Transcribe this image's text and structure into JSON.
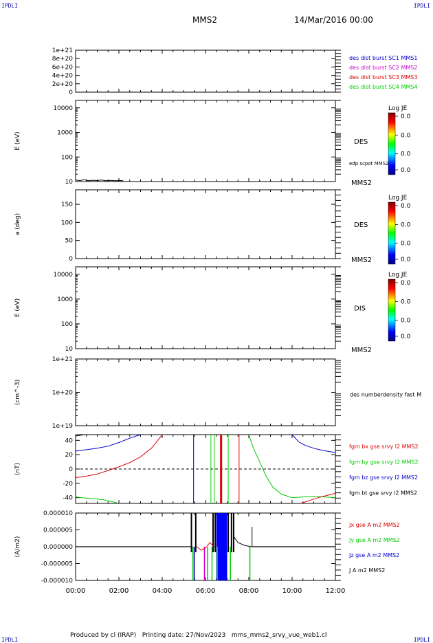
{
  "corners": {
    "top_left": "IPDLI",
    "top_right": "IPDLI",
    "bottom_left": "IPDLI",
    "bottom_right": "IPDLI"
  },
  "header": {
    "spacecraft": "MMS2",
    "date": "14/Mar/2016 00:00"
  },
  "footer": "Produced by cl (IRAP)   Printing date: 27/Nov/2023   mms_mms2_srvy_vue_web1.cl",
  "colors": {
    "axis": "#000000",
    "blue": "#0000cc",
    "magenta": "#cc00cc",
    "red": "#dd0000",
    "green": "#00cc00",
    "black": "#000000"
  },
  "time_axis": {
    "start_hours": 0,
    "end_hours": 12,
    "ticks": [
      "00:00",
      "02:00",
      "04:00",
      "06:00",
      "08:00",
      "10:00",
      "12:00"
    ]
  },
  "colorbars": [
    {
      "title": "Log JE",
      "labels": [
        "0.0",
        "0.0",
        "0.0",
        "0.0"
      ]
    },
    {
      "title": "Log JE",
      "labels": [
        "0.0",
        "0.0",
        "0.0",
        "0.0"
      ]
    },
    {
      "title": "Log JE",
      "labels": [
        "0.0",
        "0.0",
        "0.0",
        "0.0"
      ]
    }
  ],
  "chart_data": [
    {
      "type": "line",
      "ylim": [
        0,
        1e+21
      ],
      "yticks": [
        "0",
        "2e+20",
        "4e+20",
        "6e+20",
        "8e+20",
        "1e+21"
      ],
      "reference_line": 0,
      "legend": [
        {
          "label": "des dist burst SC1 MMS1",
          "color": "#0000cc"
        },
        {
          "label": "des dist burst SC2 MMS2",
          "color": "#cc00cc"
        },
        {
          "label": "des dist burst SC3 MMS3",
          "color": "#dd0000"
        },
        {
          "label": "des dist burst SC4 MMS4",
          "color": "#00cc00"
        }
      ]
    },
    {
      "type": "heatmap",
      "ylabel": "E (eV)",
      "yscale": "log",
      "ylim": [
        10,
        20000
      ],
      "yticks": [
        "10",
        "100",
        "1000",
        "10000"
      ],
      "label": "DES",
      "secondary_label": "edp scpot MMS2",
      "spacecraft": "MMS2",
      "series": [
        {
          "name": "edp scpot MMS2",
          "color": "#000000",
          "x": [
            0,
            0.2,
            0.4,
            0.6,
            0.8,
            1.0,
            1.2,
            1.4,
            1.6,
            1.8,
            2.0,
            2.2
          ],
          "y": [
            11.5,
            11.0,
            11.8,
            10.9,
            11.3,
            11.0,
            11.6,
            10.8,
            11.2,
            10.9,
            11.0,
            10.8
          ]
        }
      ]
    },
    {
      "type": "heatmap",
      "ylabel": "a (deg)",
      "ylim": [
        0,
        190
      ],
      "yticks": [
        "0",
        "50",
        "100",
        "150"
      ],
      "label": "DES",
      "spacecraft": "MMS2"
    },
    {
      "type": "heatmap",
      "ylabel": "E (eV)",
      "yscale": "log",
      "ylim": [
        10,
        20000
      ],
      "yticks": [
        "10",
        "100",
        "1000",
        "10000"
      ],
      "label": "DIS",
      "spacecraft": "MMS2"
    },
    {
      "type": "line",
      "ylabel": "(cm^-3)",
      "yscale": "log",
      "ylim": [
        1e+19,
        1e+21
      ],
      "yticks": [
        "1e+19",
        "1e+20",
        "1e+21"
      ],
      "label": "des numberdensity fast M"
    },
    {
      "type": "line",
      "ylabel": "(nT)",
      "ylim": [
        -48,
        48
      ],
      "yticks": [
        "-40",
        "-20",
        "0",
        "20",
        "40"
      ],
      "reference_line": 0,
      "legend": [
        {
          "label": "fgm bx gse srvy l2 MMS2",
          "color": "#dd0000"
        },
        {
          "label": "fgm by gse srvy l2 MMS2",
          "color": "#00cc00"
        },
        {
          "label": "fgm bz gse srvy l2 MMS2",
          "color": "#0000cc"
        },
        {
          "label": "fgm bt gse srvy l2 MMS2",
          "color": "#000000"
        }
      ],
      "series": [
        {
          "name": "fgm bx gse srvy l2 MMS2",
          "color": "#dd0000",
          "x": [
            0,
            0.5,
            1.0,
            1.5,
            2.0,
            2.5,
            3.0,
            3.5,
            3.8,
            4.0
          ],
          "y": [
            -12,
            -10,
            -7,
            -2,
            3,
            9,
            17,
            29,
            40,
            48
          ]
        },
        {
          "name": "fgm by gse srvy l2 MMS2",
          "color": "#00cc00",
          "x": [
            0,
            0.3,
            0.6,
            1.0,
            1.3,
            1.6,
            1.9
          ],
          "y": [
            -39,
            -40,
            -41,
            -42,
            -43,
            -45,
            -47
          ]
        },
        {
          "name": "fgm bz gse srvy l2 MMS2",
          "color": "#0000cc",
          "x": [
            0,
            0.5,
            1.0,
            1.5,
            2.0,
            2.5,
            3.0
          ],
          "y": [
            25,
            27,
            29,
            32,
            37,
            43,
            48
          ]
        },
        {
          "name": "fgm bt gse srvy l2 MMS2",
          "color": "#000000",
          "x": [
            0,
            0.2,
            0.4,
            0.55
          ],
          "y": [
            46,
            47,
            48,
            48
          ]
        },
        {
          "name": "fgm by gse srvy l2 MMS2 (late)",
          "color": "#00cc00",
          "x": [
            8.0,
            8.2,
            8.5,
            8.8,
            9.1,
            9.5,
            10.0,
            10.5,
            11.0,
            11.5,
            12.0
          ],
          "y": [
            48,
            30,
            10,
            -10,
            -25,
            -35,
            -40,
            -39,
            -38,
            -39,
            -40
          ]
        },
        {
          "name": "fgm bz gse srvy l2 MMS2 (late)",
          "color": "#0000cc",
          "x": [
            10.0,
            10.3,
            10.6,
            11.0,
            11.4,
            11.8,
            12.0
          ],
          "y": [
            48,
            38,
            33,
            29,
            26,
            24,
            23
          ]
        },
        {
          "name": "fgm bx gse srvy l2 MMS2 (late)",
          "color": "#dd0000",
          "x": [
            10.4,
            10.8,
            11.2,
            11.6,
            12.0
          ],
          "y": [
            -48,
            -44,
            -40,
            -37,
            -34
          ]
        }
      ],
      "vlines": [
        {
          "x": 5.45,
          "color": "#0000cc"
        },
        {
          "x": 6.25,
          "color": "#00cc00"
        },
        {
          "x": 6.4,
          "color": "#00cc00"
        },
        {
          "x": 6.72,
          "color": "#dd0000",
          "width": 3
        },
        {
          "x": 7.05,
          "color": "#00cc00"
        },
        {
          "x": 7.55,
          "color": "#dd0000"
        }
      ]
    },
    {
      "type": "line",
      "ylabel": "(A/m2)",
      "ylim": [
        -1e-05,
        1e-05
      ],
      "yticks": [
        "-0.000010",
        "-0.000005",
        "0.000000",
        "0.000005",
        "0.000010"
      ],
      "legend": [
        {
          "label": "Jx gse A m2 MMS2",
          "color": "#dd0000"
        },
        {
          "label": "Jy gse A m2 MMS2",
          "color": "#00cc00"
        },
        {
          "label": "Jz gse A m2 MMS2",
          "color": "#0000cc"
        },
        {
          "label": "J A m2 MMS2",
          "color": "#000000"
        }
      ],
      "active_interval": [
        5.4,
        8.1
      ]
    }
  ]
}
